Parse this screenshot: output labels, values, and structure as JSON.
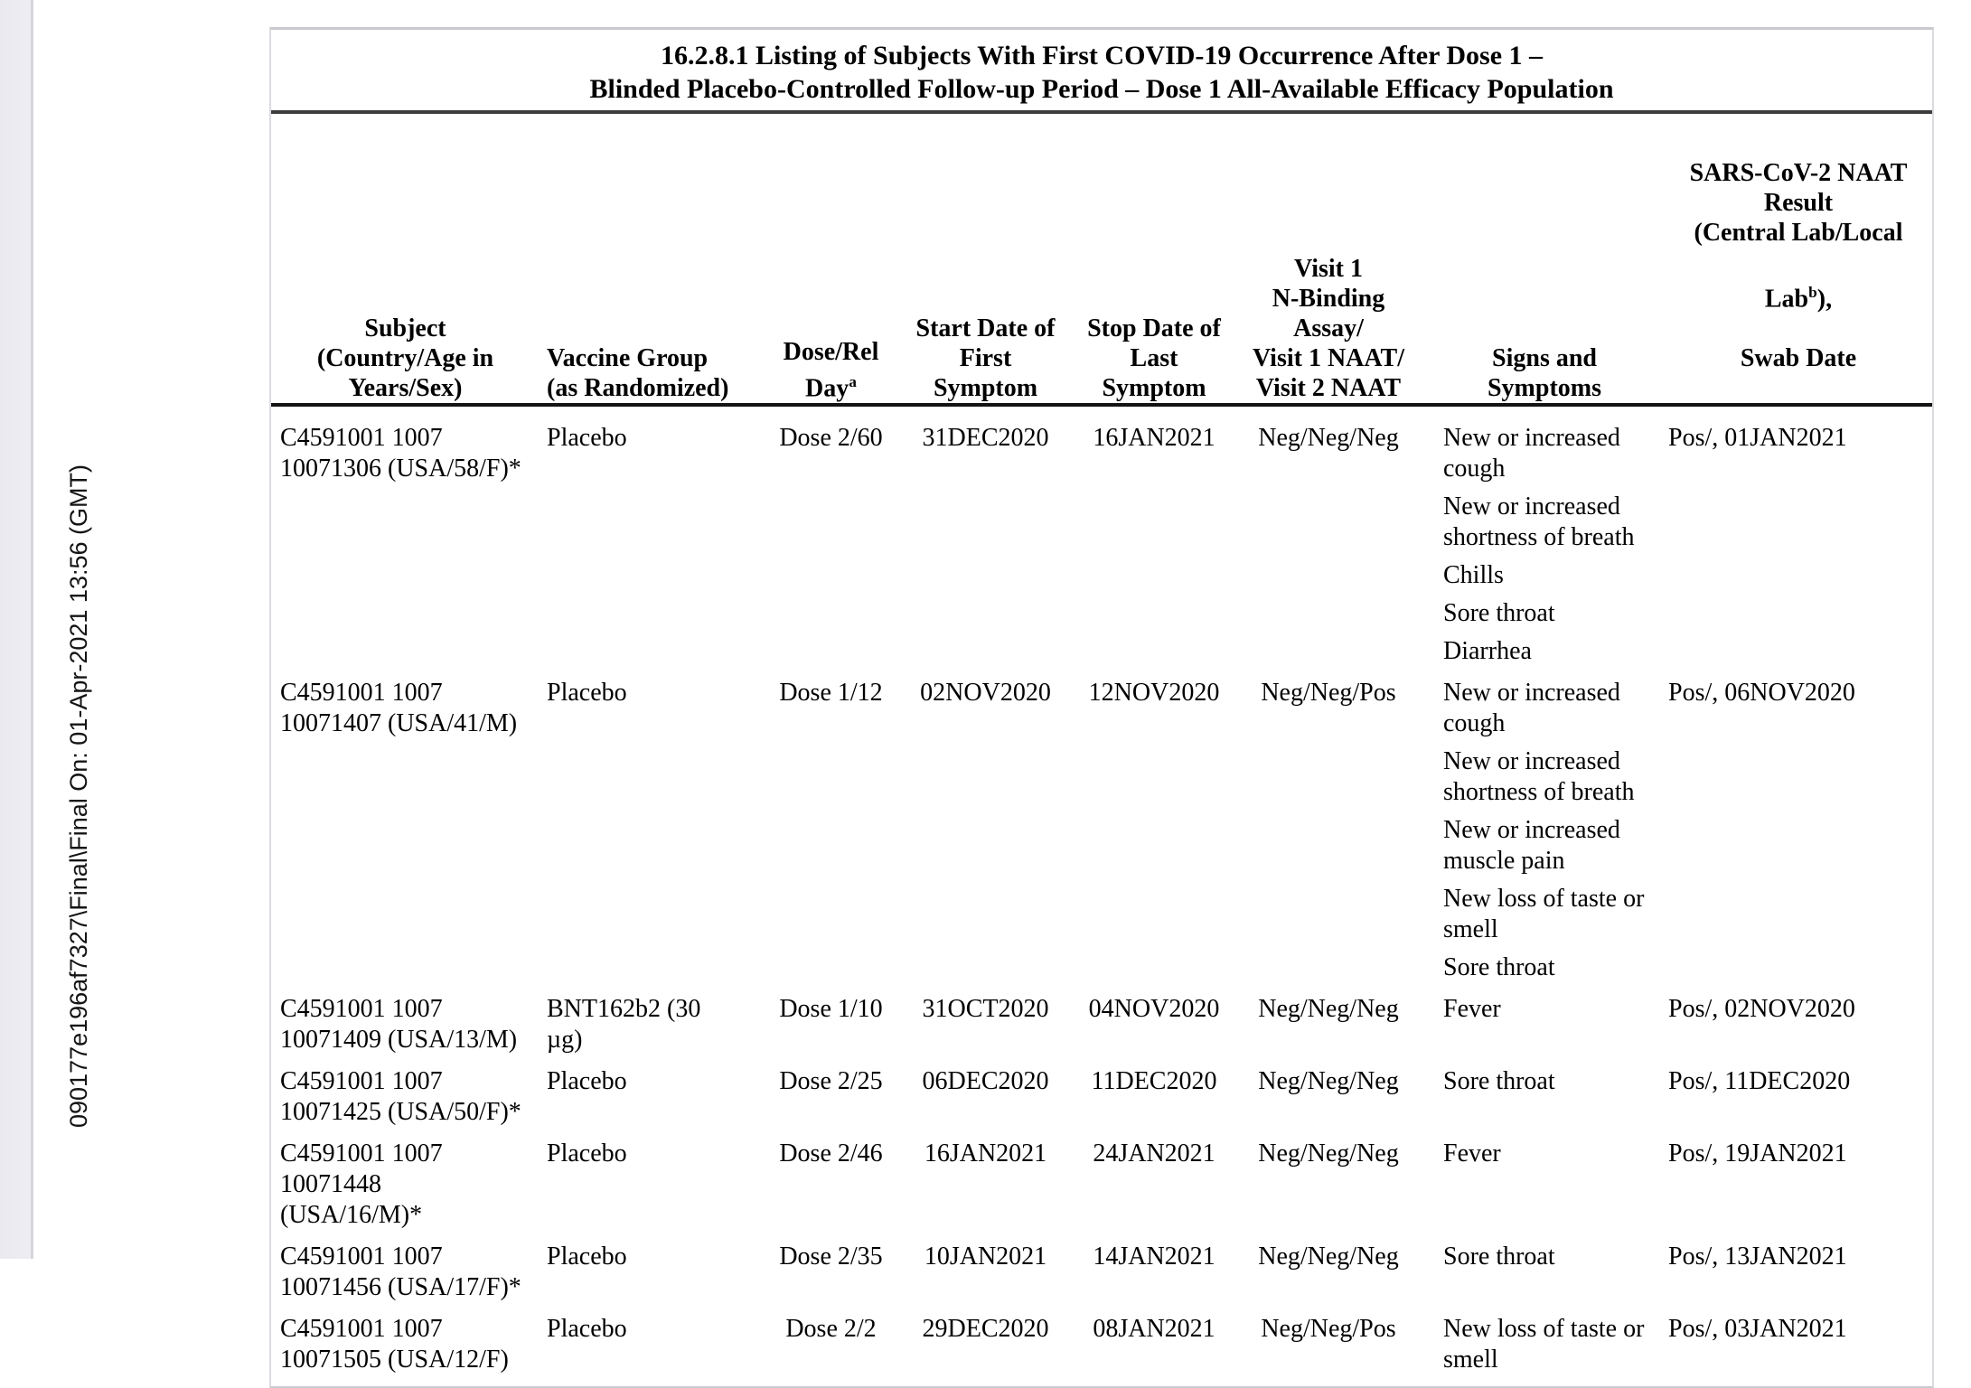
{
  "page": {
    "sidebar_text": "090177e196af7327\\Final\\Final On: 01-Apr-2021 13:56 (GMT)"
  },
  "table": {
    "title_lines": [
      "16.2.8.1 Listing of Subjects With First COVID-19 Occurrence After Dose 1 –",
      "Blinded Placebo-Controlled Follow-up Period – Dose 1 All-Available Efficacy Population"
    ],
    "headers": {
      "subject": [
        "Subject",
        "(Country/Age in",
        "Years/Sex)"
      ],
      "vaccine": [
        "Vaccine Group",
        "(as Randomized)"
      ],
      "dose": {
        "label": "Dose/Rel Day",
        "sup": "a"
      },
      "start_date": [
        "Start Date of",
        "First",
        "Symptom"
      ],
      "stop_date": [
        "Stop Date of",
        "Last",
        "Symptom"
      ],
      "visit": [
        "Visit 1",
        "N-Binding",
        "Assay/",
        "Visit 1 NAAT/",
        "Visit 2 NAAT"
      ],
      "signs": [
        "Signs and",
        "Symptoms"
      ],
      "sars": {
        "lines_top": [
          "SARS-CoV-2 NAAT",
          "Result",
          "(Central Lab/Local"
        ],
        "lab_prefix": "Lab",
        "lab_sup": "b",
        "lab_suffix": "),",
        "last_line": "Swab Date"
      }
    },
    "rows": [
      {
        "subject": [
          "C4591001 1007",
          "10071306 (USA/58/F)*"
        ],
        "vaccine": [
          "Placebo"
        ],
        "dose": "Dose 2/60",
        "start": "31DEC2020",
        "stop": "16JAN2021",
        "visit": "Neg/Neg/Neg",
        "symptoms": [
          "New or increased\ncough",
          "New or increased\nshortness of breath",
          "Chills",
          "Sore throat",
          "Diarrhea"
        ],
        "result": "Pos/, 01JAN2021"
      },
      {
        "subject": [
          "C4591001 1007",
          "10071407 (USA/41/M)"
        ],
        "vaccine": [
          "Placebo"
        ],
        "dose": "Dose 1/12",
        "start": "02NOV2020",
        "stop": "12NOV2020",
        "visit": "Neg/Neg/Pos",
        "symptoms": [
          "New or increased\ncough",
          "New or increased\nshortness of breath",
          "New or increased\nmuscle pain",
          "New loss of taste or\nsmell",
          "Sore throat"
        ],
        "result": "Pos/, 06NOV2020"
      },
      {
        "subject": [
          "C4591001 1007",
          "10071409 (USA/13/M)"
        ],
        "vaccine": [
          "BNT162b2 (30",
          "µg)"
        ],
        "dose": "Dose 1/10",
        "start": "31OCT2020",
        "stop": "04NOV2020",
        "visit": "Neg/Neg/Neg",
        "symptoms": [
          "Fever"
        ],
        "result": "Pos/, 02NOV2020"
      },
      {
        "subject": [
          "C4591001 1007",
          "10071425 (USA/50/F)*"
        ],
        "vaccine": [
          "Placebo"
        ],
        "dose": "Dose 2/25",
        "start": "06DEC2020",
        "stop": "11DEC2020",
        "visit": "Neg/Neg/Neg",
        "symptoms": [
          "Sore throat"
        ],
        "result": "Pos/, 11DEC2020"
      },
      {
        "subject": [
          "C4591001 1007",
          "10071448",
          "(USA/16/M)*"
        ],
        "vaccine": [
          "Placebo"
        ],
        "dose": "Dose 2/46",
        "start": "16JAN2021",
        "stop": "24JAN2021",
        "visit": "Neg/Neg/Neg",
        "symptoms": [
          "Fever"
        ],
        "result": "Pos/, 19JAN2021"
      },
      {
        "subject": [
          "C4591001 1007",
          "10071456 (USA/17/F)*"
        ],
        "vaccine": [
          "Placebo"
        ],
        "dose": "Dose 2/35",
        "start": "10JAN2021",
        "stop": "14JAN2021",
        "visit": "Neg/Neg/Neg",
        "symptoms": [
          "Sore throat"
        ],
        "result": "Pos/, 13JAN2021"
      },
      {
        "subject": [
          "C4591001 1007",
          "10071505 (USA/12/F)"
        ],
        "vaccine": [
          "Placebo"
        ],
        "dose": "Dose 2/2",
        "start": "29DEC2020",
        "stop": "08JAN2021",
        "visit": "Neg/Neg/Pos",
        "symptoms": [
          "New loss of taste or\nsmell"
        ],
        "result": "Pos/, 03JAN2021"
      }
    ]
  }
}
